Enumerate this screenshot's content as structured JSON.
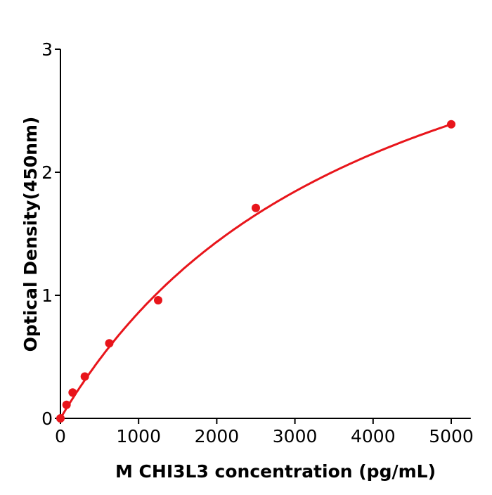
{
  "chart_data": {
    "type": "scatter",
    "title": "",
    "xlabel": "M  CHI3L3 concentration (pg/mL)",
    "ylabel": "Optical Density(450nm)",
    "xlim": [
      0,
      5250
    ],
    "ylim": [
      0,
      3
    ],
    "xticks": [
      0,
      1000,
      2000,
      3000,
      4000,
      5000
    ],
    "yticks": [
      0,
      1,
      2,
      3
    ],
    "grid": false,
    "color": "#e8151b",
    "series": [
      {
        "x": [
          0,
          78,
          156,
          312,
          625,
          1250,
          2500,
          5000
        ],
        "y": [
          0.0,
          0.11,
          0.21,
          0.34,
          0.61,
          0.96,
          1.71,
          2.39
        ],
        "fit_line": true
      }
    ]
  }
}
